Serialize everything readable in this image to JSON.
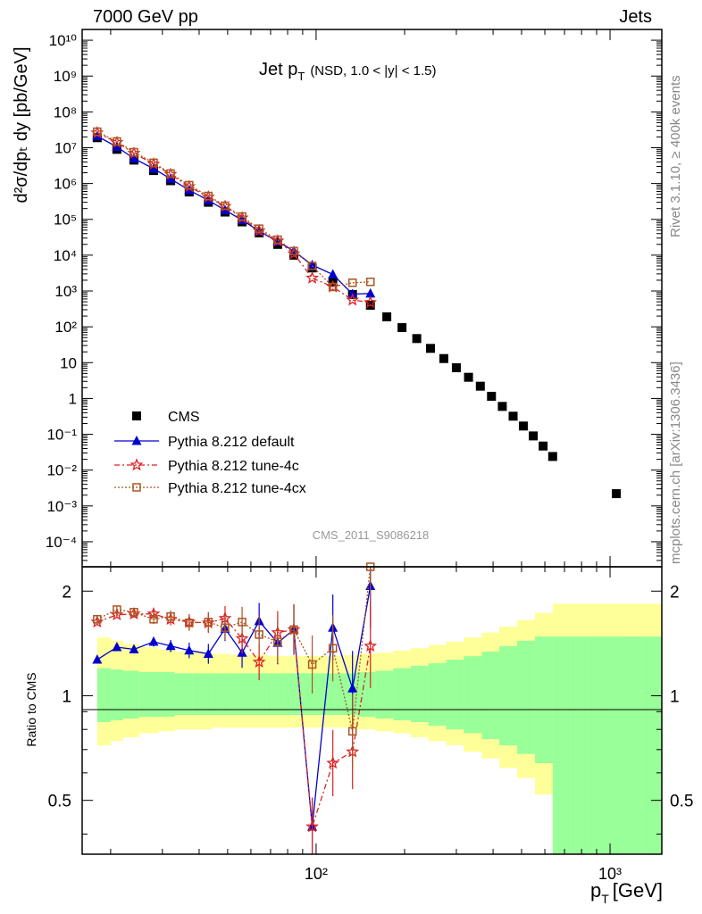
{
  "header": {
    "left": "7000 GeV pp",
    "right": "Jets"
  },
  "side_labels": {
    "rivet": "Rivet 3.1.10, ≥ 400k events",
    "mcplots": "mcplots.cern.ch [arXiv:1306.3436]"
  },
  "chart_data": {
    "type": "scatter",
    "title": "Jet p",
    "title_sub": "T",
    "title_extra": "(NSD, 1.0 < |y| < 1.5)",
    "watermark": "CMS_2011_S9086218",
    "xlabel": "p",
    "xlabel_sub": "T",
    "xlabel_unit": "[GeV]",
    "ylabel": "d²σ/dpₜ dy [pb/GeV]",
    "ratio_ylabel": "Ratio to CMS",
    "x_scale": "log",
    "xlim": [
      16,
      1500
    ],
    "y_scale": "log",
    "ylim": [
      2e-05,
      20000000000
    ],
    "ratio_ylim": [
      0.35,
      2.35
    ],
    "x_tick_labels": [
      "10²",
      "10³"
    ],
    "y_tick_labels": [
      "10⁻⁴",
      "10⁻³",
      "10⁻²",
      "10⁻¹",
      "1",
      "10",
      "10²",
      "10³",
      "10⁴",
      "10⁵",
      "10⁶",
      "10⁷",
      "10⁸",
      "10⁹",
      "10¹⁰"
    ],
    "ratio_tick_labels": [
      "0.5",
      "1",
      "2"
    ],
    "legend_position": "bottom-left",
    "series": [
      {
        "name": "CMS",
        "color": "#000000",
        "marker": "square",
        "x": [
          18,
          21,
          24,
          28,
          32,
          37,
          43,
          49,
          56,
          64,
          74,
          84,
          97,
          114,
          133,
          153,
          174,
          196,
          220,
          245,
          272,
          300,
          330,
          362,
          395,
          430,
          468,
          507,
          548,
          592,
          638,
          1050
        ],
        "y": [
          19000000,
          9000000,
          4500000,
          2300000,
          1200000,
          580000,
          300000,
          160000,
          85000,
          42000,
          20000,
          10000,
          4400,
          1800,
          800,
          400,
          190,
          95,
          47,
          25,
          13,
          7.2,
          3.9,
          2.2,
          1.15,
          0.6,
          0.32,
          0.17,
          0.09,
          0.047,
          0.024,
          0.0022
        ]
      },
      {
        "name": "Pythia 8.212 default",
        "color": "#0000cc",
        "marker": "triangle",
        "x": [
          18,
          21,
          24,
          28,
          32,
          37,
          43,
          49,
          56,
          64,
          74,
          84,
          97,
          114,
          133,
          153
        ],
        "y": [
          21000000,
          10500000,
          5000000,
          2600000,
          1350000,
          650000,
          340000,
          180000,
          95000,
          47000,
          24000,
          13000,
          5300,
          2900,
          820,
          850
        ],
        "ratio": [
          1.27,
          1.38,
          1.36,
          1.43,
          1.39,
          1.35,
          1.32,
          1.56,
          1.33,
          1.64,
          1.42,
          1.55,
          0.42,
          1.57,
          1.05,
          2.07
        ]
      },
      {
        "name": "Pythia 8.212 tune-4c",
        "color": "#dd2222",
        "marker": "star",
        "x": [
          18,
          21,
          24,
          28,
          32,
          37,
          43,
          49,
          56,
          64,
          74,
          84,
          97,
          114,
          133,
          153
        ],
        "y": [
          26000000,
          14000000,
          7000000,
          3500000,
          1800000,
          820000,
          420000,
          230000,
          110000,
          48000,
          25000,
          11000,
          2300,
          1300,
          560,
          480
        ],
        "ratio": [
          1.63,
          1.71,
          1.72,
          1.72,
          1.66,
          1.63,
          1.62,
          1.67,
          1.46,
          1.25,
          1.52,
          1.55,
          0.42,
          0.64,
          0.69,
          1.39
        ]
      },
      {
        "name": "Pythia 8.212 tune-4cx",
        "color": "#aa5522",
        "marker": "open-square",
        "x": [
          18,
          21,
          24,
          28,
          32,
          37,
          43,
          49,
          56,
          64,
          74,
          84,
          97,
          114,
          133,
          153
        ],
        "y": [
          28000000,
          15000000,
          7500000,
          3800000,
          1900000,
          900000,
          450000,
          240000,
          120000,
          55000,
          27000,
          13000,
          5000,
          1300,
          1700,
          1800
        ],
        "ratio": [
          1.66,
          1.77,
          1.74,
          1.66,
          1.69,
          1.62,
          1.63,
          1.57,
          1.63,
          1.5,
          1.43,
          1.55,
          1.23,
          1.37,
          0.79,
          2.4
        ]
      }
    ],
    "bands": {
      "x_edges": [
        18,
        20,
        22,
        25,
        29,
        33,
        38,
        44,
        51,
        59,
        68,
        78,
        90,
        104,
        120,
        138,
        159,
        183,
        210,
        241,
        277,
        318,
        366,
        420,
        483,
        555,
        638,
        733,
        843,
        969,
        1114,
        1280,
        1500
      ],
      "green_hi": [
        1.2,
        1.19,
        1.18,
        1.17,
        1.17,
        1.16,
        1.16,
        1.16,
        1.16,
        1.16,
        1.16,
        1.16,
        1.16,
        1.16,
        1.16,
        1.17,
        1.18,
        1.2,
        1.22,
        1.24,
        1.27,
        1.3,
        1.34,
        1.39,
        1.44,
        1.48,
        1.48,
        1.48,
        1.48,
        1.48,
        1.48,
        1.48
      ],
      "green_lo": [
        0.84,
        0.85,
        0.86,
        0.87,
        0.87,
        0.88,
        0.88,
        0.88,
        0.88,
        0.88,
        0.88,
        0.88,
        0.88,
        0.88,
        0.88,
        0.87,
        0.86,
        0.85,
        0.84,
        0.82,
        0.8,
        0.78,
        0.75,
        0.72,
        0.68,
        0.64,
        0.35,
        0.35,
        0.35,
        0.35,
        0.35,
        0.35
      ],
      "yellow_hi": [
        1.47,
        1.44,
        1.41,
        1.38,
        1.36,
        1.34,
        1.33,
        1.32,
        1.31,
        1.31,
        1.3,
        1.3,
        1.3,
        1.3,
        1.31,
        1.32,
        1.33,
        1.35,
        1.37,
        1.4,
        1.43,
        1.47,
        1.52,
        1.58,
        1.65,
        1.73,
        1.84,
        1.84,
        1.84,
        1.84,
        1.84,
        1.84
      ],
      "yellow_lo": [
        0.72,
        0.74,
        0.76,
        0.78,
        0.79,
        0.8,
        0.8,
        0.81,
        0.81,
        0.81,
        0.81,
        0.81,
        0.81,
        0.81,
        0.81,
        0.8,
        0.79,
        0.78,
        0.76,
        0.74,
        0.72,
        0.69,
        0.66,
        0.62,
        0.58,
        0.52,
        0.35,
        0.35,
        0.35,
        0.35,
        0.35,
        0.35
      ]
    },
    "colors": {
      "green_band": "#99ff99",
      "yellow_band": "#ffff99",
      "axis": "#000000",
      "watermark": "#999999"
    }
  }
}
